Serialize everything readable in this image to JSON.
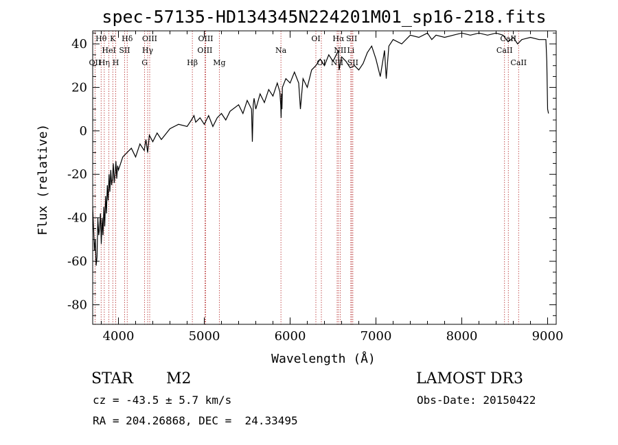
{
  "chart_data": {
    "type": "line",
    "title": "spec-57135-HD134345N224201M01_sp16-218.fits",
    "xlabel": "Wavelength (Å)",
    "ylabel": "Flux (relative)",
    "xlim": [
      3700,
      9100
    ],
    "ylim": [
      -89,
      46
    ],
    "x_ticks": [
      4000,
      5000,
      6000,
      7000,
      8000,
      9000
    ],
    "y_ticks": [
      -80,
      -60,
      -40,
      -20,
      0,
      20,
      40
    ],
    "grid": false,
    "legend": "none",
    "series": [
      {
        "x": [
          3700,
          3710,
          3720,
          3730,
          3740,
          3750,
          3760,
          3770,
          3780,
          3790,
          3800,
          3810,
          3820,
          3830,
          3840,
          3850,
          3860,
          3870,
          3880,
          3890,
          3900,
          3910,
          3920,
          3930,
          3940,
          3950,
          3960,
          3970,
          3980,
          3990,
          4000,
          4050,
          4100,
          4150,
          4200,
          4250,
          4300,
          4320,
          4340,
          4360,
          4400,
          4450,
          4500,
          4600,
          4700,
          4800,
          4850,
          4880,
          4900,
          4950,
          5000,
          5050,
          5100,
          5150,
          5200,
          5250,
          5300,
          5400,
          5450,
          5500,
          5550,
          5560,
          5570,
          5580,
          5600,
          5650,
          5700,
          5750,
          5800,
          5850,
          5880,
          5890,
          5895,
          5900,
          5905,
          5910,
          5920,
          5950,
          6000,
          6050,
          6100,
          6120,
          6150,
          6200,
          6250,
          6300,
          6350,
          6400,
          6450,
          6500,
          6550,
          6562,
          6570,
          6600,
          6650,
          6700,
          6750,
          6800,
          6850,
          6900,
          6950,
          7000,
          7050,
          7100,
          7120,
          7150,
          7200,
          7300,
          7400,
          7500,
          7600,
          7650,
          7700,
          7800,
          7900,
          8000,
          8100,
          8200,
          8300,
          8400,
          8480,
          8500,
          8540,
          8600,
          8650,
          8700,
          8800,
          8900,
          8980,
          8990,
          9000,
          9010
        ],
        "y": [
          -35,
          -45,
          -55,
          -50,
          -62,
          -58,
          -40,
          -48,
          -45,
          -38,
          -52,
          -40,
          -48,
          -35,
          -44,
          -30,
          -38,
          -25,
          -32,
          -20,
          -28,
          -18,
          -25,
          -22,
          -15,
          -24,
          -20,
          -14,
          -22,
          -16,
          -18,
          -12,
          -10,
          -8,
          -12,
          -6,
          -9,
          -4,
          -10,
          -2,
          -5,
          -1,
          -4,
          1,
          3,
          2,
          5,
          7,
          4,
          6,
          3,
          7,
          2,
          6,
          8,
          5,
          9,
          12,
          8,
          14,
          10,
          -5,
          12,
          15,
          10,
          17,
          13,
          19,
          16,
          22,
          18,
          12,
          6,
          17,
          10,
          20,
          21,
          24,
          22,
          27,
          22,
          10,
          24,
          20,
          28,
          30,
          33,
          30,
          35,
          32,
          36,
          37,
          28,
          34,
          32,
          29,
          30,
          28,
          31,
          36,
          39,
          33,
          25,
          37,
          24,
          39,
          42,
          40,
          44,
          43,
          45,
          42,
          44,
          43,
          44,
          45,
          44,
          45,
          44,
          45,
          44,
          43,
          41,
          43,
          40,
          42,
          43,
          42,
          42,
          32,
          10,
          8
        ]
      }
    ],
    "line_markers": [
      {
        "label": "OII",
        "x": 3727,
        "row": 2
      },
      {
        "label": "Hθ",
        "x": 3798,
        "row": 0
      },
      {
        "label": "Hη",
        "x": 3835,
        "row": 2
      },
      {
        "label": "HeI",
        "x": 3889,
        "row": 1
      },
      {
        "label": "K",
        "x": 3934,
        "row": 0
      },
      {
        "label": "H",
        "x": 3968,
        "row": 2
      },
      {
        "label": "SII",
        "x": 4072,
        "row": 1
      },
      {
        "label": "Hδ",
        "x": 4102,
        "row": 0
      },
      {
        "label": "G",
        "x": 4305,
        "row": 2
      },
      {
        "label": "Hγ",
        "x": 4340,
        "row": 1
      },
      {
        "label": "OIII",
        "x": 4364,
        "row": 0
      },
      {
        "label": "Hβ",
        "x": 4861,
        "row": 2
      },
      {
        "label": "OIII",
        "x": 5007,
        "row": 1
      },
      {
        "label": "OIII",
        "x": 5016,
        "row": 0
      },
      {
        "label": "Mg",
        "x": 5175,
        "row": 2
      },
      {
        "label": "Na",
        "x": 5893,
        "row": 1
      },
      {
        "label": "OI",
        "x": 6300,
        "row": 0
      },
      {
        "label": "OI",
        "x": 6364,
        "row": 2
      },
      {
        "label": "NII",
        "x": 6548,
        "row": 2
      },
      {
        "label": "Hα",
        "x": 6563,
        "row": 0
      },
      {
        "label": "NII",
        "x": 6583,
        "row": 1
      },
      {
        "label": "Li",
        "x": 6707,
        "row": 1
      },
      {
        "label": "SII",
        "x": 6717,
        "row": 0
      },
      {
        "label": "SII",
        "x": 6731,
        "row": 2
      },
      {
        "label": "CaII",
        "x": 8498,
        "row": 1
      },
      {
        "label": "CaII",
        "x": 8542,
        "row": 0
      },
      {
        "label": "CaII",
        "x": 8662,
        "row": 2
      }
    ]
  },
  "info": {
    "object_class": "STAR",
    "subclass": "M2",
    "survey": "LAMOST DR3",
    "cz": "cz = -43.5 ± 5.7 km/s",
    "obs_date": "Obs-Date: 20150422",
    "coords": "RA = 204.26868, DEC =  24.33495"
  }
}
